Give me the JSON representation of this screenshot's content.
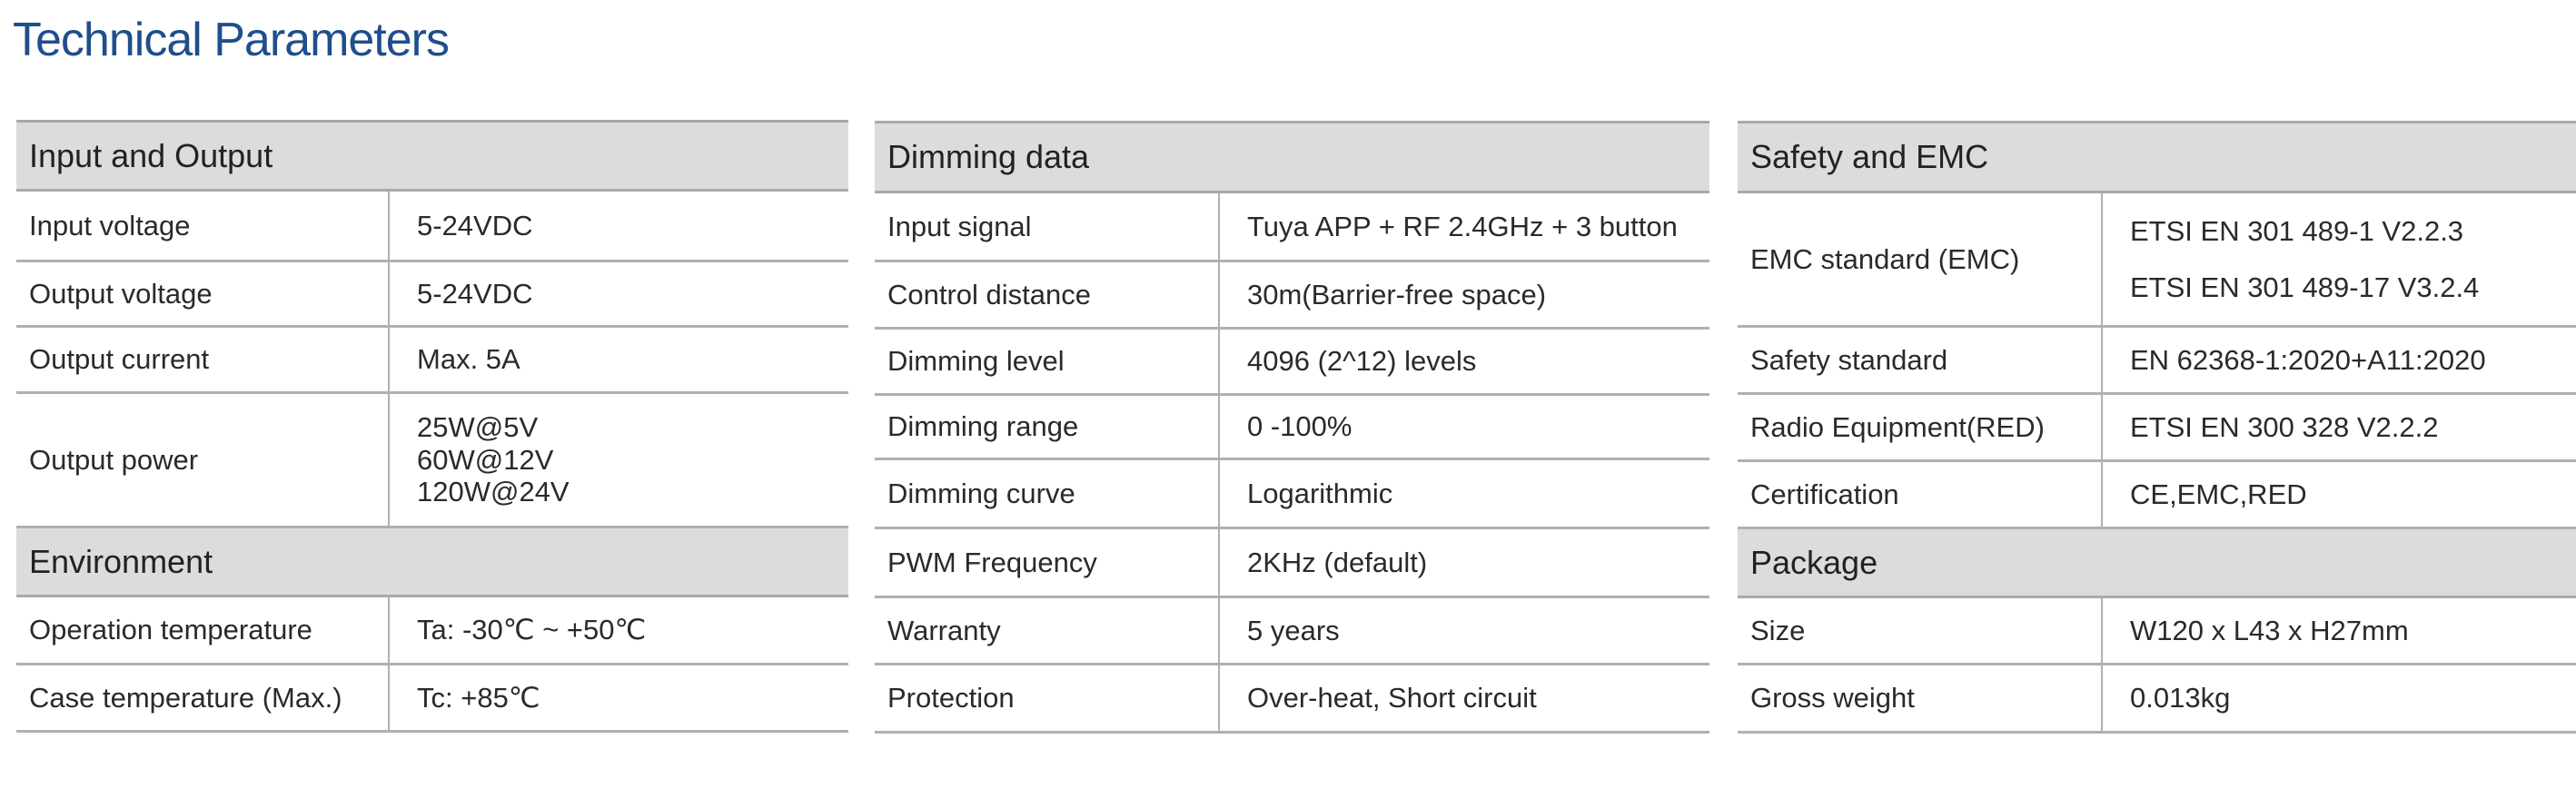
{
  "title": "Technical Parameters",
  "input_output": {
    "header": "Input and Output",
    "rows": [
      {
        "label": "Input voltage",
        "value": "5-24VDC"
      },
      {
        "label": "Output voltage",
        "value": "5-24VDC"
      },
      {
        "label": "Output current",
        "value": "Max. 5A"
      },
      {
        "label": "Output power",
        "values": [
          "25W@5V",
          "60W@12V",
          "120W@24V"
        ]
      }
    ]
  },
  "environment": {
    "header": "Environment",
    "rows": [
      {
        "label": "Operation temperature",
        "value": "Ta: -30℃ ~ +50℃"
      },
      {
        "label": "Case temperature (Max.)",
        "value": "Tc: +85℃"
      }
    ]
  },
  "dimming": {
    "header": "Dimming data",
    "rows": [
      {
        "label": "Input signal",
        "value": "Tuya APP + RF 2.4GHz + 3 button"
      },
      {
        "label": "Control distance",
        "value": "30m(Barrier-free space)"
      },
      {
        "label": "Dimming level",
        "value": "4096 (2^12) levels"
      },
      {
        "label": "Dimming range",
        "value": "0 -100%"
      },
      {
        "label": "Dimming curve",
        "value": "Logarithmic"
      },
      {
        "label": "PWM Frequency",
        "value": "2KHz (default)"
      },
      {
        "label": "Warranty",
        "value": "5 years"
      },
      {
        "label": "Protection",
        "value": "Over-heat, Short circuit"
      }
    ]
  },
  "safety": {
    "header": "Safety and EMC",
    "rows": [
      {
        "label": "EMC standard (EMC)",
        "values": [
          "ETSI EN 301 489-1 V2.2.3",
          "ETSI EN 301 489-17 V3.2.4"
        ]
      },
      {
        "label": "Safety standard",
        "value": "EN 62368-1:2020+A11:2020"
      },
      {
        "label": "Radio Equipment(RED)",
        "value": "ETSI EN 300 328 V2.2.2"
      },
      {
        "label": "Certification",
        "value": "CE,EMC,RED"
      }
    ]
  },
  "package": {
    "header": "Package",
    "rows": [
      {
        "label": "Size",
        "value": "W120 x L43 x H27mm"
      },
      {
        "label": "Gross weight",
        "value": "0.013kg"
      }
    ]
  }
}
